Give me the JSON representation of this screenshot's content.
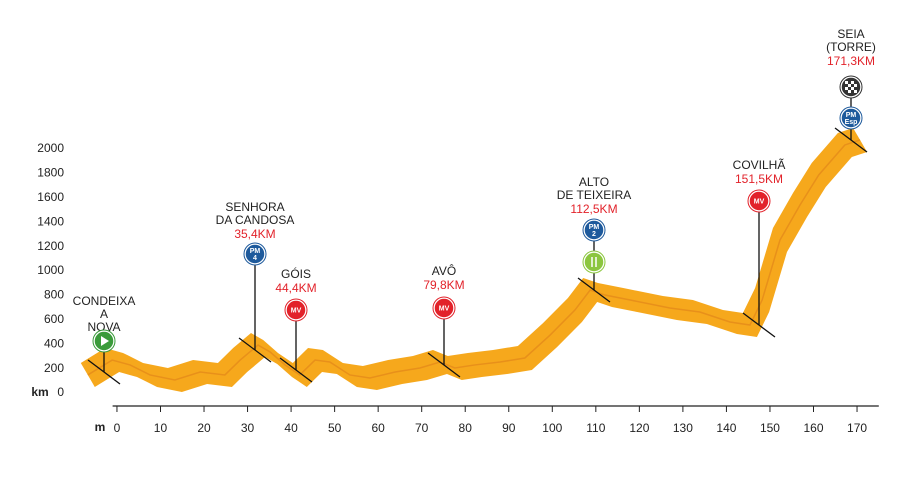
{
  "chart_data": {
    "type": "area",
    "y_axis_label": "km",
    "x_axis_label": "m",
    "color": "#f6a81c",
    "xlim": [
      -1,
      175
    ],
    "xticks": [
      0,
      10,
      20,
      30,
      40,
      50,
      60,
      70,
      80,
      90,
      100,
      110,
      120,
      130,
      140,
      150,
      160,
      170
    ],
    "ylim": [
      0,
      2000
    ],
    "yticks": [
      0,
      200,
      400,
      600,
      800,
      1000,
      1200,
      1400,
      1600,
      1800,
      2000
    ],
    "x": [
      -6.7,
      -1.1,
      3.0,
      7.6,
      13.3,
      19.1,
      24.8,
      28.3,
      32.4,
      35.2,
      38.6,
      42.0,
      45.5,
      48.9,
      53.5,
      58.1,
      63.9,
      69.6,
      74.2,
      77.6,
      82.2,
      88.0,
      93.7,
      99.5,
      105.2,
      108.7,
      112.1,
      117.9,
      127.0,
      133.9,
      140.8,
      145.4,
      148.2,
      152.3,
      156.9,
      161.2,
      167.2,
      170.7
    ],
    "y": [
      148,
      270,
      230,
      148,
      107,
      172,
      148,
      270,
      393,
      336,
      230,
      148,
      270,
      254,
      148,
      123,
      172,
      205,
      254,
      205,
      230,
      254,
      287,
      475,
      680,
      844,
      803,
      762,
      697,
      664,
      582,
      557,
      762,
      1254,
      1541,
      1787,
      2033,
      2074
    ],
    "annotations": [
      {
        "text": [
          "CONDEIXA",
          "A",
          "NOVA"
        ],
        "badges": [
          {
            "color": "#3a9b3a"
          }
        ]
      },
      {
        "text": [
          "SENHORA",
          "DA CANDOSA"
        ],
        "km_label": "35,4KM",
        "badges": [
          {
            "color": "#1e5a9c",
            "text": [
              "PM",
              "4"
            ]
          }
        ]
      },
      {
        "text": [
          "GÓIS"
        ],
        "km_label": "44,4KM",
        "badges": [
          {
            "color": "#e2222a",
            "text": [
              "MV"
            ]
          }
        ]
      },
      {
        "text": [
          "AVÔ"
        ],
        "km_label": "79,8KM",
        "badges": [
          {
            "color": "#e2222a",
            "text": [
              "MV"
            ]
          }
        ]
      },
      {
        "text": [
          "ALTO",
          "DE TEIXEIRA"
        ],
        "km_label": "112,5KM",
        "badges": [
          {
            "color": "#1e5a9c",
            "text": [
              "PM",
              "2"
            ]
          },
          {
            "color": "#8cc63f"
          }
        ]
      },
      {
        "text": [
          "COVILHÃ"
        ],
        "km_label": "151,5KM",
        "badges": [
          {
            "color": "#e2222a",
            "text": [
              "MV"
            ]
          }
        ]
      },
      {
        "text": [
          "SEIA",
          "(TORRE)"
        ],
        "km_label": "171,3KM",
        "badges": [
          {
            "color": "#333333"
          },
          {
            "color": "#1e5a9c",
            "text": [
              "PM",
              "Esp"
            ]
          }
        ]
      }
    ]
  }
}
